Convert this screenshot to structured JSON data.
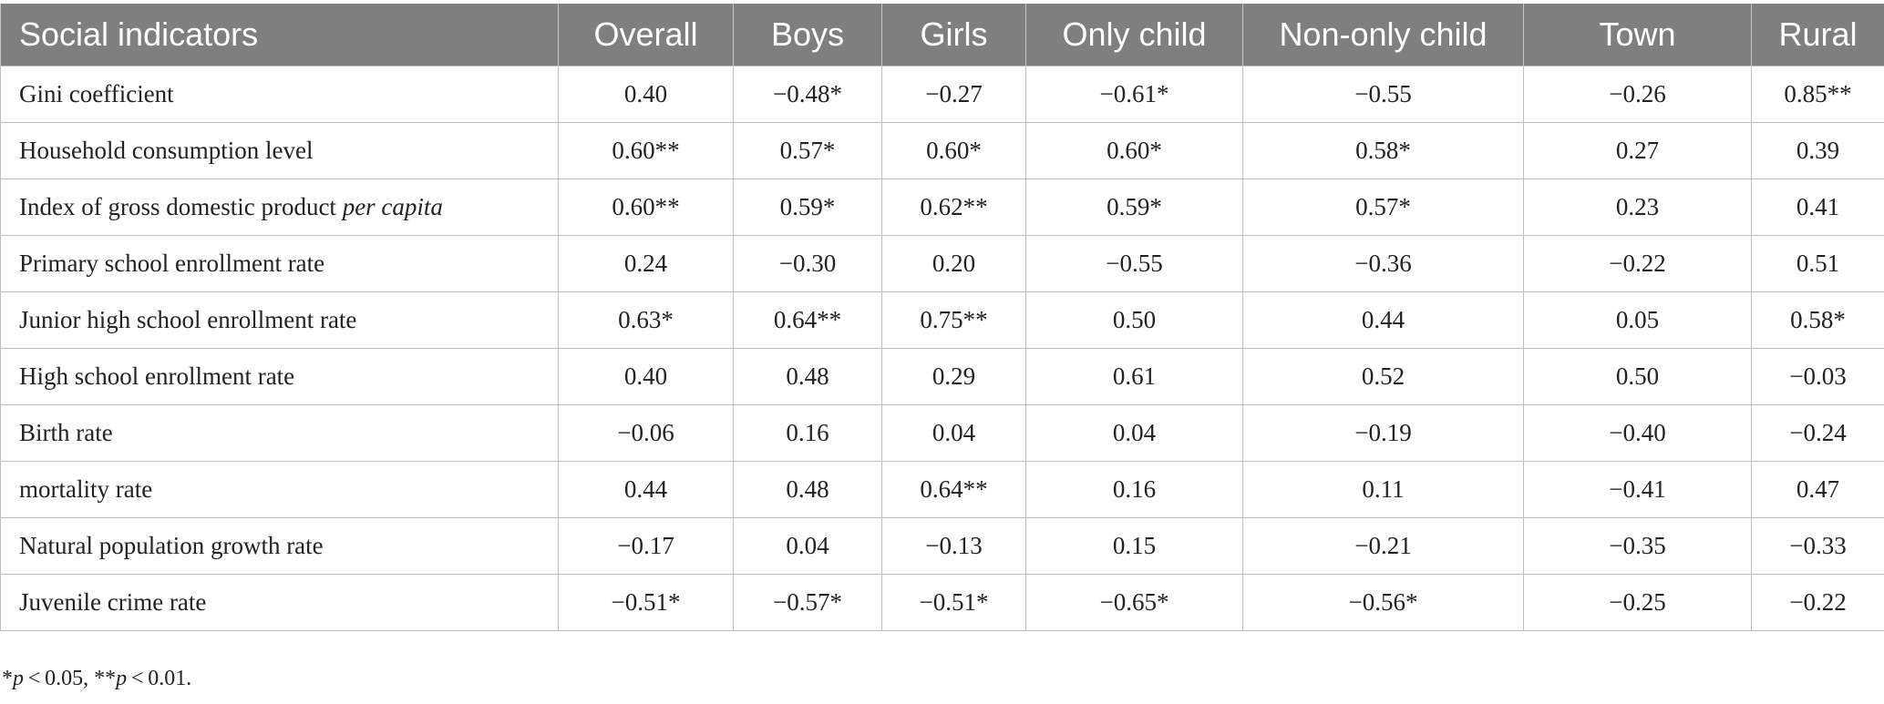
{
  "table": {
    "columns": [
      "Social indicators",
      "Overall",
      "Boys",
      "Girls",
      "Only child",
      "Non-only child",
      "Town",
      "Rural"
    ],
    "rows": [
      {
        "label": "Gini coefficient",
        "label_italic": "",
        "cells": [
          "0.40",
          "−0.48*",
          "−0.27",
          "−0.61*",
          "−0.55",
          "−0.26",
          "0.85**"
        ]
      },
      {
        "label": "Household consumption level",
        "label_italic": "",
        "cells": [
          "0.60**",
          "0.57*",
          "0.60*",
          "0.60*",
          "0.58*",
          "0.27",
          "0.39"
        ]
      },
      {
        "label": "Index of gross domestic product ",
        "label_italic": "per capita",
        "cells": [
          "0.60**",
          "0.59*",
          "0.62**",
          "0.59*",
          "0.57*",
          "0.23",
          "0.41"
        ]
      },
      {
        "label": "Primary school enrollment rate",
        "label_italic": "",
        "cells": [
          "0.24",
          "−0.30",
          "0.20",
          "−0.55",
          "−0.36",
          "−0.22",
          "0.51"
        ]
      },
      {
        "label": "Junior high school enrollment rate",
        "label_italic": "",
        "cells": [
          "0.63*",
          "0.64**",
          "0.75**",
          "0.50",
          "0.44",
          "0.05",
          "0.58*"
        ]
      },
      {
        "label": "High school enrollment rate",
        "label_italic": "",
        "cells": [
          "0.40",
          "0.48",
          "0.29",
          "0.61",
          "0.52",
          "0.50",
          "−0.03"
        ]
      },
      {
        "label": "Birth rate",
        "label_italic": "",
        "cells": [
          "−0.06",
          "0.16",
          "0.04",
          "0.04",
          "−0.19",
          "−0.40",
          "−0.24"
        ]
      },
      {
        "label": "mortality rate",
        "label_italic": "",
        "cells": [
          "0.44",
          "0.48",
          "0.64**",
          "0.16",
          "0.11",
          "−0.41",
          "0.47"
        ]
      },
      {
        "label": "Natural population growth rate",
        "label_italic": "",
        "cells": [
          "−0.17",
          "0.04",
          "−0.13",
          "0.15",
          "−0.21",
          "−0.35",
          "−0.33"
        ]
      },
      {
        "label": "Juvenile crime rate",
        "label_italic": "",
        "cells": [
          "−0.51*",
          "−0.57*",
          "−0.51*",
          "−0.65*",
          "−0.56*",
          "−0.25",
          "−0.22"
        ]
      }
    ]
  },
  "footnote": {
    "part1": "*",
    "p1": "p",
    "part2": " < 0.05, **",
    "p2": "p",
    "part3": " < 0.01."
  }
}
